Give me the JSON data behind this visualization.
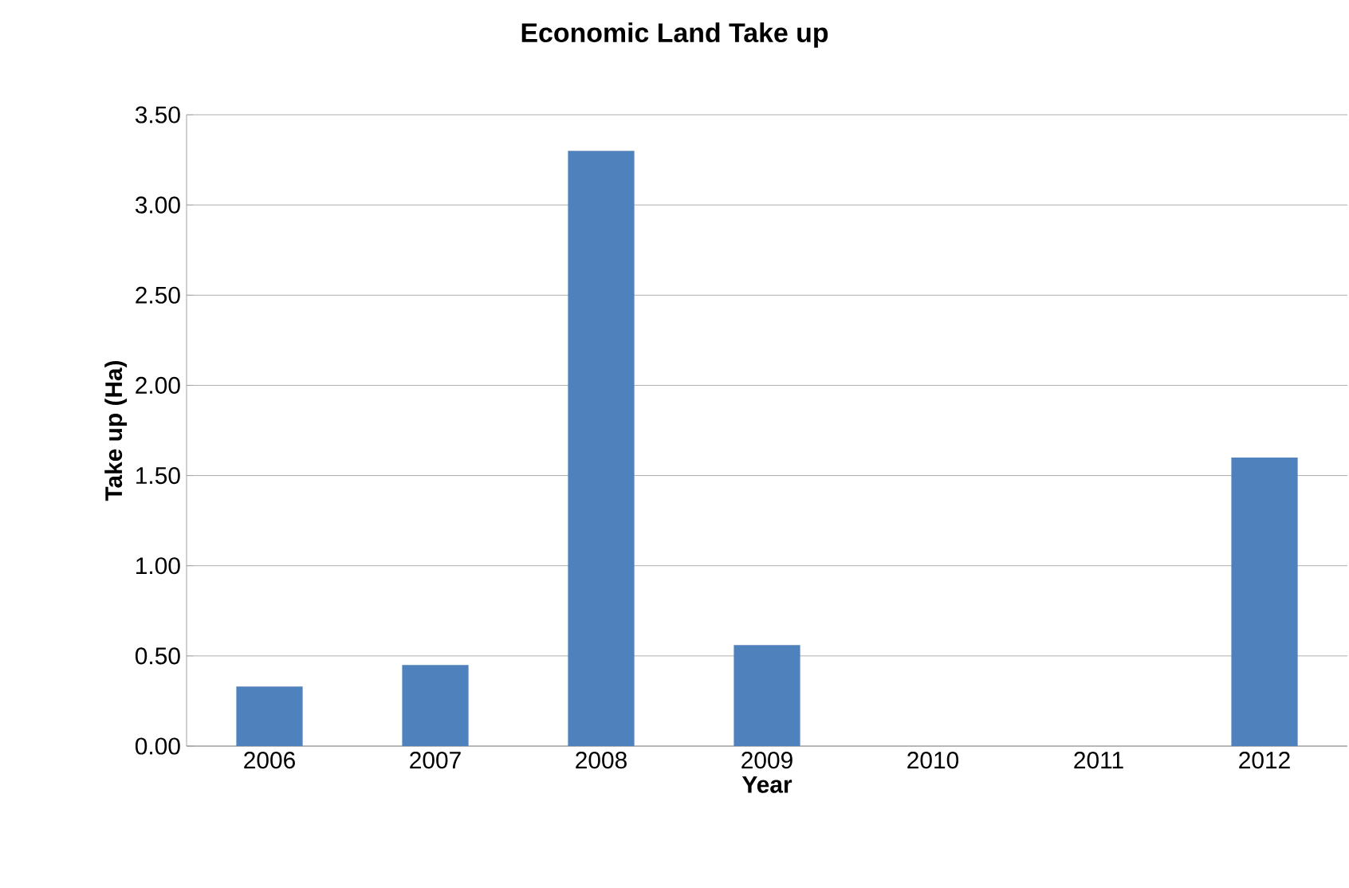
{
  "chart_data": {
    "type": "bar",
    "title": "Economic Land Take up",
    "xlabel": "Year",
    "ylabel": "Take up (Ha)",
    "categories": [
      "2006",
      "2007",
      "2008",
      "2009",
      "2010",
      "2011",
      "2012"
    ],
    "values": [
      0.33,
      0.45,
      3.3,
      0.56,
      0,
      0,
      1.6
    ],
    "color": "#4f81bd",
    "ylim": [
      0,
      3.5
    ],
    "yticks": [
      {
        "value": 0,
        "label": "0.00"
      },
      {
        "value": 0.5,
        "label": "0.50"
      },
      {
        "value": 1,
        "label": "1.00"
      },
      {
        "value": 1.5,
        "label": "1.50"
      },
      {
        "value": 2,
        "label": "2.00"
      },
      {
        "value": 2.5,
        "label": "2.50"
      },
      {
        "value": 3,
        "label": "3.00"
      },
      {
        "value": 3.5,
        "label": "3.50"
      }
    ],
    "grid": "y"
  }
}
